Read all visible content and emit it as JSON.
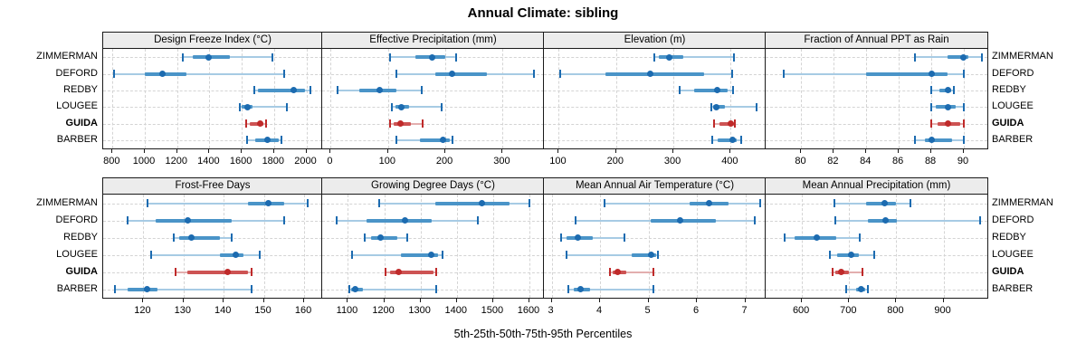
{
  "title": "Annual Climate: sibling",
  "caption": "5th-25th-50th-75th-95th Percentiles",
  "stations": [
    "ZIMMERMAN",
    "DEFORD",
    "REDBY",
    "LOUGEE",
    "GUIDA",
    "BARBER"
  ],
  "highlight_station": "GUIDA",
  "colors": {
    "blue_dot": "#1c6bb0",
    "blue_band": "#4a94c8",
    "blue_whisker": "#a7cbe4",
    "red_dot": "#bf2a2a",
    "red_band": "#cd5353",
    "red_whisker": "#e3aeae",
    "grid": "#d4d4d4",
    "header_bg": "#ececec",
    "panel_border": "#1a1a1a"
  },
  "chart_data": {
    "type": "dot-percentile-trellis",
    "rows_order_top_to_bottom": [
      "ZIMMERMAN",
      "DEFORD",
      "REDBY",
      "LOUGEE",
      "GUIDA",
      "BARBER"
    ],
    "percentiles": [
      5,
      25,
      50,
      75,
      95
    ],
    "legend": "5th-25th-50th-75th-95th Percentiles",
    "grid": "dashed",
    "panels": [
      {
        "title": "Design Freeze Index (°C)",
        "grid_pos": [
          0,
          0
        ],
        "xlim": [
          742,
          2098
        ],
        "ticks": [
          800,
          1000,
          1200,
          1400,
          1600,
          1800,
          2000
        ],
        "values": {
          "ZIMMERMAN": [
            1235,
            1295,
            1395,
            1525,
            1790
          ],
          "DEFORD": [
            810,
            1000,
            1110,
            1255,
            1860
          ],
          "REDBY": [
            1675,
            1700,
            1920,
            1990,
            2025
          ],
          "LOUGEE": [
            1590,
            1602,
            1636,
            1665,
            1880
          ],
          "GUIDA": [
            1625,
            1650,
            1715,
            1735,
            1750
          ],
          "BARBER": [
            1635,
            1685,
            1758,
            1830,
            1848
          ]
        }
      },
      {
        "title": "Effective Precipitation (mm)",
        "grid_pos": [
          0,
          1
        ],
        "xlim": [
          -15,
          372
        ],
        "ticks": [
          0,
          100,
          200,
          300
        ],
        "values": {
          "ZIMMERMAN": [
            103,
            148,
            177,
            200,
            218
          ],
          "DEFORD": [
            115,
            183,
            211,
            272,
            354
          ],
          "REDBY": [
            12,
            49,
            86,
            115,
            159
          ],
          "LOUGEE": [
            107,
            113,
            124,
            137,
            194
          ],
          "GUIDA": [
            104,
            110,
            122,
            140,
            161
          ],
          "BARBER": [
            115,
            155,
            196,
            207,
            213
          ]
        }
      },
      {
        "title": "Elevation (m)",
        "grid_pos": [
          0,
          2
        ],
        "xlim": [
          74,
          461
        ],
        "ticks": [
          100,
          200,
          300,
          400
        ],
        "values": {
          "ZIMMERMAN": [
            266,
            275,
            292,
            318,
            405
          ],
          "DEFORD": [
            103,
            182,
            259,
            353,
            403
          ],
          "REDBY": [
            311,
            337,
            376,
            395,
            404
          ],
          "LOUGEE": [
            366,
            369,
            375,
            390,
            445
          ],
          "GUIDA": [
            371,
            380,
            400,
            405,
            407
          ],
          "BARBER": [
            368,
            377,
            404,
            411,
            418
          ]
        }
      },
      {
        "title": "Fraction of Annual PPT as Rain",
        "grid_pos": [
          0,
          3
        ],
        "xlim": [
          77.8,
          91.45
        ],
        "ticks": [
          80,
          82,
          84,
          86,
          88,
          90
        ],
        "values": {
          "ZIMMERMAN": [
            87,
            89,
            90,
            90.3,
            91.1
          ],
          "DEFORD": [
            78.9,
            84,
            88,
            89,
            90
          ],
          "REDBY": [
            88,
            88.5,
            89,
            89.2,
            89.4
          ],
          "LOUGEE": [
            88,
            88.3,
            89,
            89.5,
            90
          ],
          "GUIDA": [
            88,
            88.4,
            89,
            89.8,
            90
          ],
          "BARBER": [
            87,
            87.6,
            88,
            89.3,
            90
          ]
        }
      },
      {
        "title": "Frost-Free Days",
        "grid_pos": [
          1,
          0
        ],
        "xlim": [
          110,
          164.5
        ],
        "ticks": [
          120,
          130,
          140,
          150,
          160
        ],
        "values": {
          "ZIMMERMAN": [
            121,
            146,
            151,
            155,
            161
          ],
          "DEFORD": [
            116,
            123,
            131,
            142,
            155
          ],
          "REDBY": [
            127.5,
            129,
            132,
            139,
            142
          ],
          "LOUGEE": [
            122,
            139,
            143,
            145,
            149
          ],
          "GUIDA": [
            128,
            131,
            141,
            146,
            147
          ],
          "BARBER": [
            113,
            116,
            121,
            123.5,
            147
          ]
        }
      },
      {
        "title": "Growing Degree Days (°C)",
        "grid_pos": [
          1,
          1
        ],
        "xlim": [
          1029,
          1640
        ],
        "ticks": [
          1100,
          1200,
          1300,
          1400,
          1500,
          1600
        ],
        "values": {
          "ZIMMERMAN": [
            1185,
            1340,
            1470,
            1545,
            1600
          ],
          "DEFORD": [
            1070,
            1150,
            1258,
            1330,
            1458
          ],
          "REDBY": [
            1145,
            1163,
            1190,
            1236,
            1264
          ],
          "LOUGEE": [
            1112,
            1245,
            1330,
            1349,
            1360
          ],
          "GUIDA": [
            1203,
            1215,
            1240,
            1335,
            1343
          ],
          "BARBER": [
            1104,
            1109,
            1119,
            1141,
            1342
          ]
        }
      },
      {
        "title": "Mean Annual Air Temperature (°C)",
        "grid_pos": [
          1,
          2
        ],
        "xlim": [
          2.84,
          7.42
        ],
        "ticks": [
          3,
          4,
          5,
          6,
          7
        ],
        "values": {
          "ZIMMERMAN": [
            4.1,
            5.85,
            6.25,
            6.65,
            7.3
          ],
          "DEFORD": [
            3.5,
            5.05,
            5.65,
            6.4,
            7.2
          ],
          "REDBY": [
            3.2,
            3.3,
            3.55,
            3.85,
            4.5
          ],
          "LOUGEE": [
            3.3,
            4.65,
            5.05,
            5.15,
            5.2
          ],
          "GUIDA": [
            4.2,
            4.27,
            4.37,
            4.55,
            5.1
          ],
          "BARBER": [
            3.35,
            3.45,
            3.6,
            3.8,
            5.1
          ]
        }
      },
      {
        "title": "Mean Annual Precipitation (mm)",
        "grid_pos": [
          1,
          3
        ],
        "xlim": [
          523,
          993
        ],
        "ticks": [
          600,
          700,
          800,
          900
        ],
        "values": {
          "ZIMMERMAN": [
            668,
            735,
            776,
            800,
            830
          ],
          "DEFORD": [
            670,
            740,
            777,
            801,
            978
          ],
          "REDBY": [
            563,
            585,
            632,
            673,
            723
          ],
          "LOUGEE": [
            659,
            674,
            704,
            721,
            753
          ],
          "GUIDA": [
            665,
            671,
            684,
            700,
            729
          ],
          "BARBER": [
            693,
            715,
            726,
            734,
            739
          ]
        }
      }
    ]
  }
}
